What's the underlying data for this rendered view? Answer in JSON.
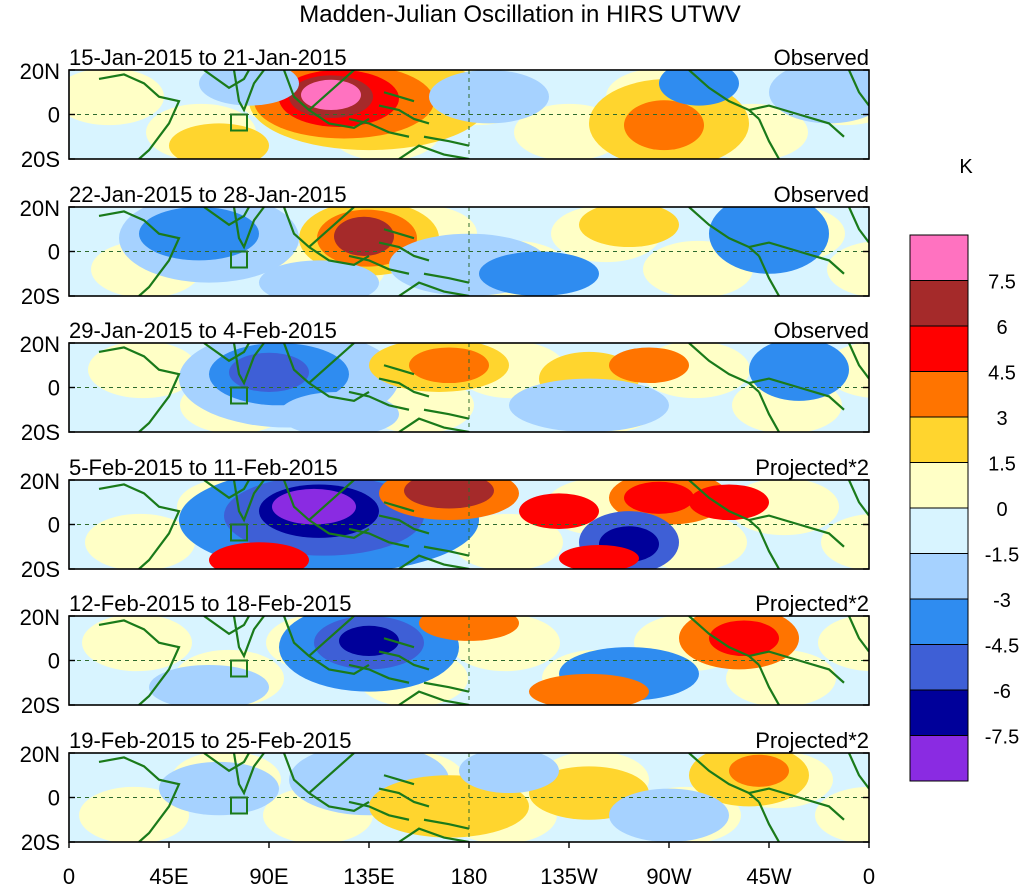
{
  "title": "Madden-Julian Oscillation in HIRS UTWV",
  "unit_label": "K",
  "lat_labels": [
    "20N",
    "0",
    "20S"
  ],
  "lon_labels": [
    "0",
    "45E",
    "90E",
    "135E",
    "180",
    "135W",
    "90W",
    "45W",
    "0"
  ],
  "panels": [
    {
      "period": "15-Jan-2015 to 21-Jan-2015",
      "kind": "Observed"
    },
    {
      "period": "22-Jan-2015 to 28-Jan-2015",
      "kind": "Observed"
    },
    {
      "period": "29-Jan-2015 to 4-Feb-2015",
      "kind": "Observed"
    },
    {
      "period": "5-Feb-2015 to 11-Feb-2015",
      "kind": "Projected*2"
    },
    {
      "period": "12-Feb-2015 to 18-Feb-2015",
      "kind": "Projected*2"
    },
    {
      "period": "19-Feb-2015 to 25-Feb-2015",
      "kind": "Projected*2"
    }
  ],
  "colorbar": {
    "colors": [
      "#ff72c0",
      "#a52a2a",
      "#ff0000",
      "#ff7400",
      "#ffd52e",
      "#ffffc6",
      "#d8f4ff",
      "#a6d2ff",
      "#2f8cf0",
      "#3e5fd6",
      "#00009a",
      "#8a2be2"
    ],
    "labels": [
      "7.5",
      "6",
      "4.5",
      "3",
      "1.5",
      "0",
      "-1.5",
      "-3",
      "-4.5",
      "-6",
      "-7.5"
    ]
  },
  "map_palette": {
    "coast": "#1a7a1a",
    "neg_light": "#d8f4ff",
    "neg_mid": "#a6d2ff",
    "neg_strong": "#2f8cf0",
    "neg_deep": "#3e5fd6",
    "neg_darkest": "#00009a",
    "neg_extreme": "#8a2be2",
    "pos_light": "#ffffc6",
    "pos_mid": "#ffd52e",
    "pos_strong": "#ff7400",
    "pos_deep": "#ff0000",
    "pos_darkest": "#a52a2a",
    "pos_extreme": "#ff72c0"
  }
}
